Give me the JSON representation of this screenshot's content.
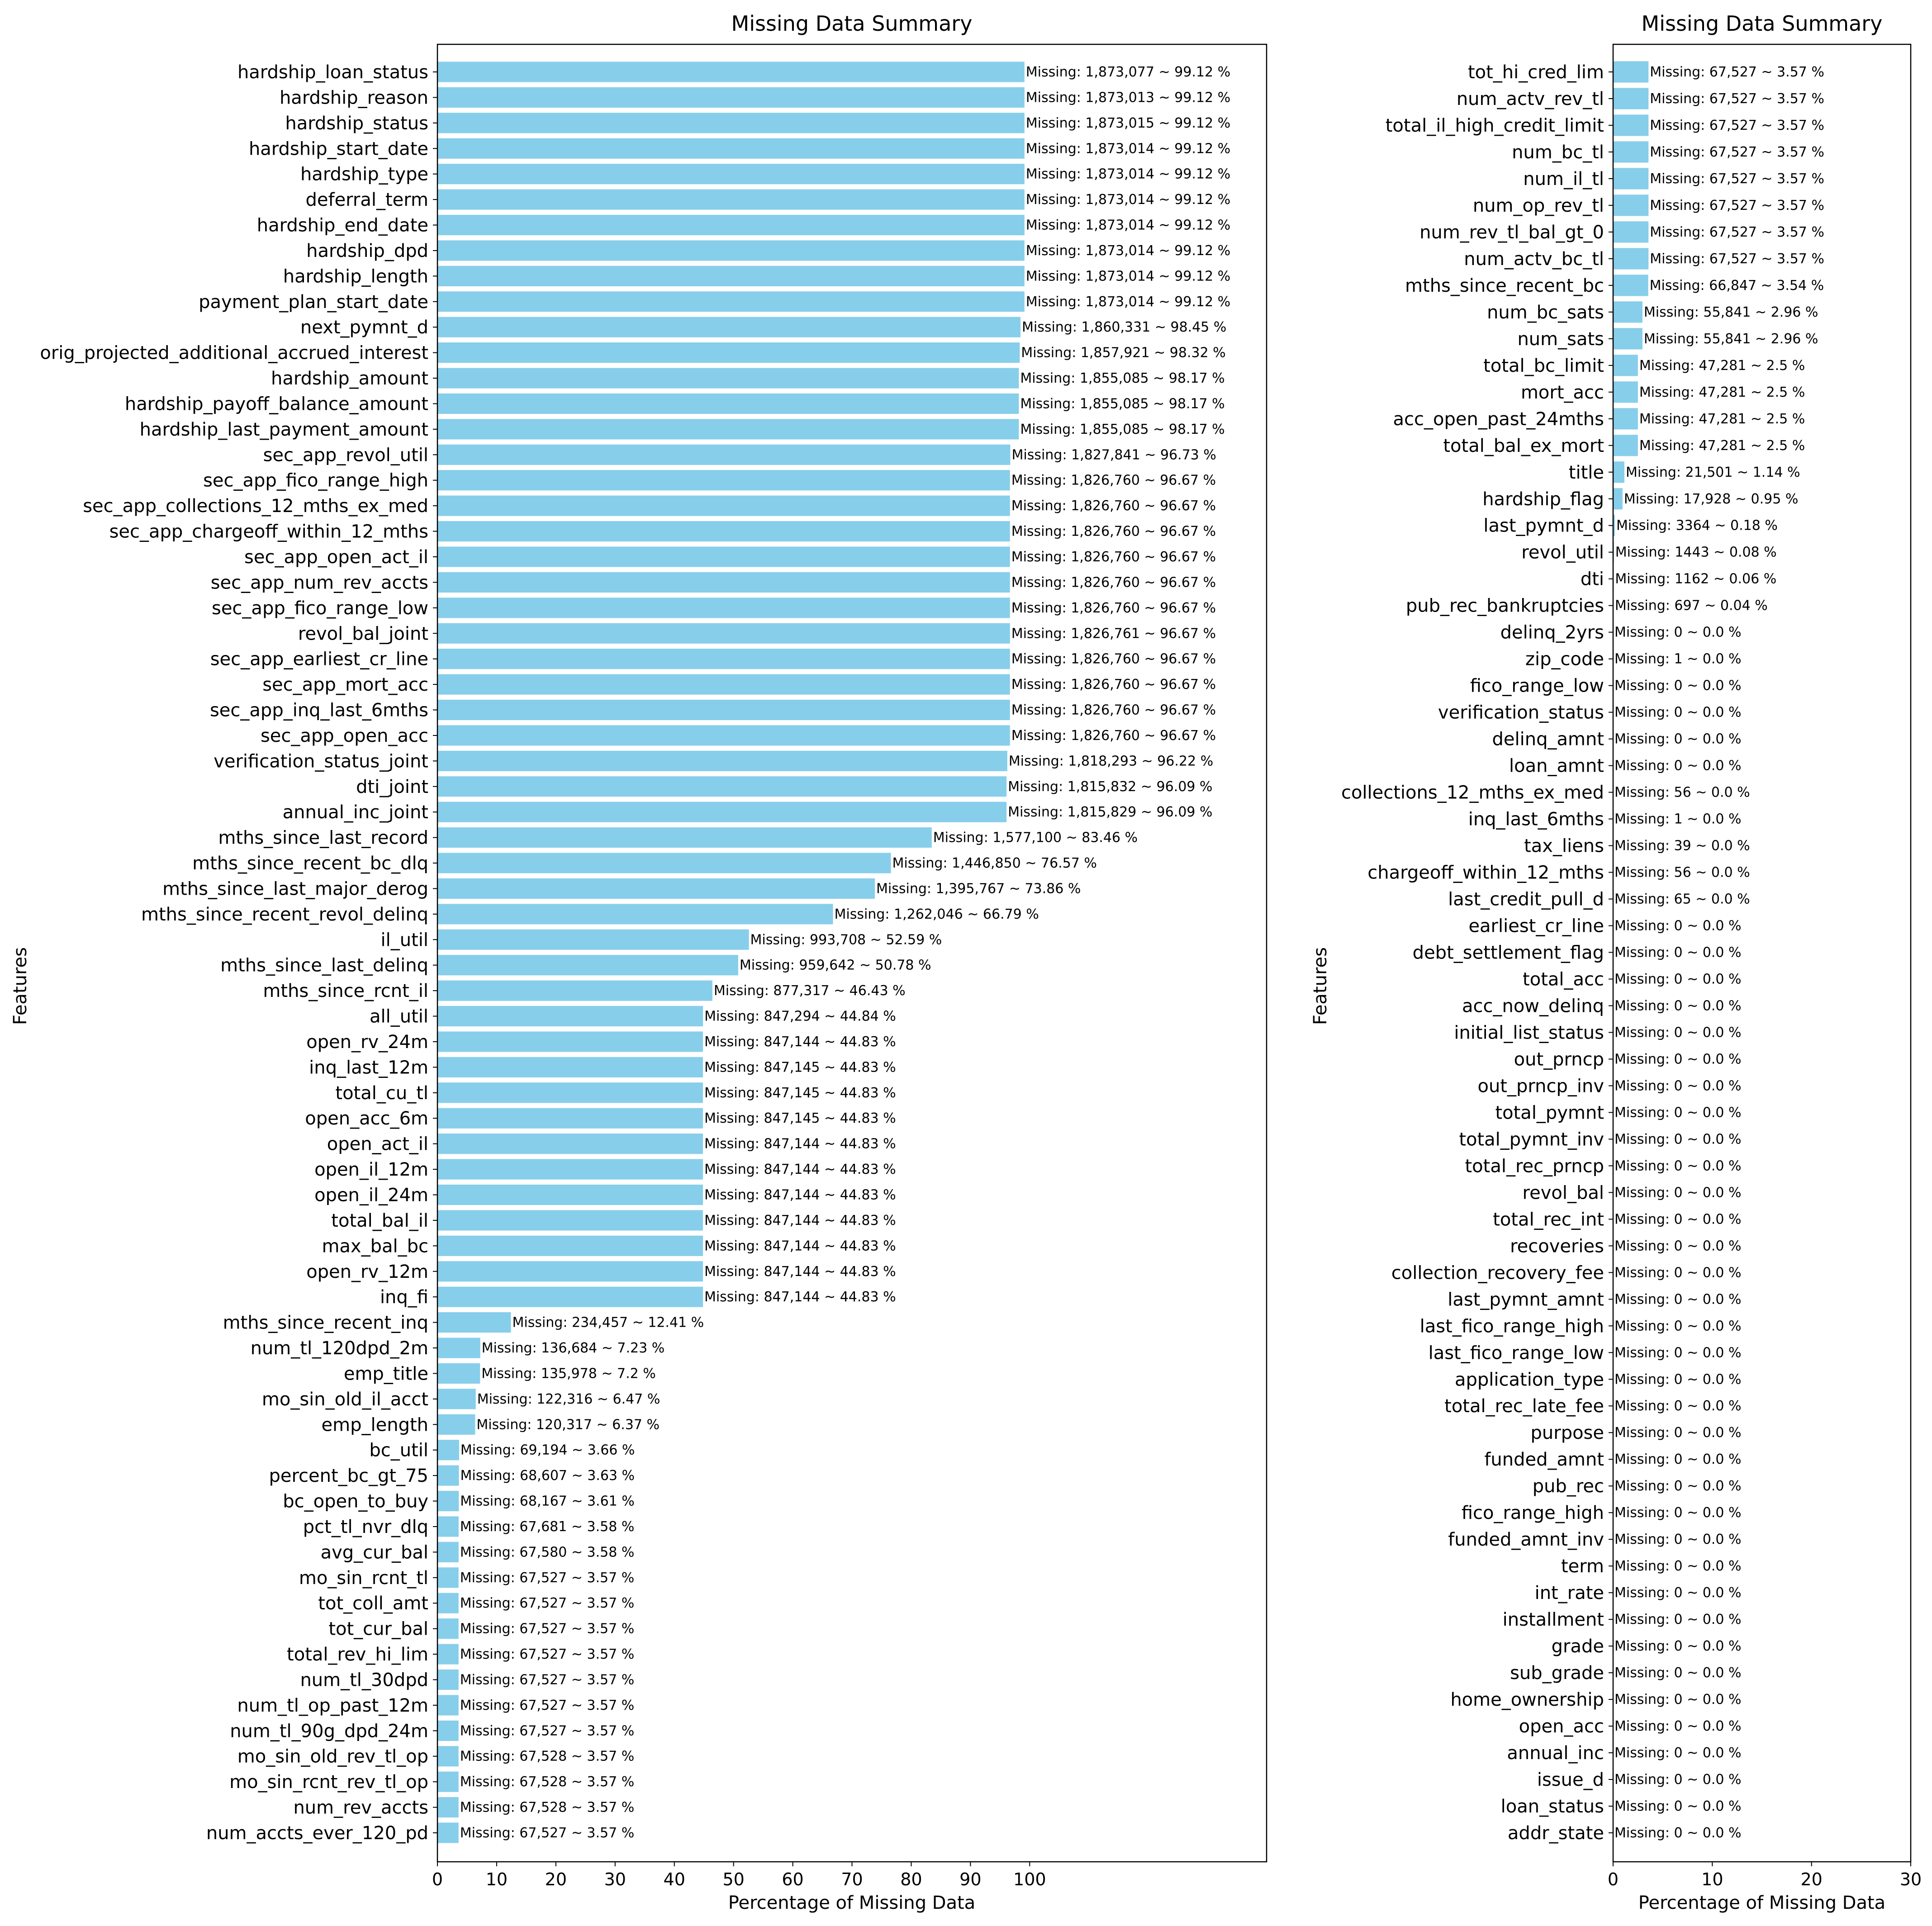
{
  "chart_data": [
    {
      "type": "bar",
      "orientation": "horizontal",
      "title": "Missing Data Summary",
      "xlabel": "Percentage of Missing Data",
      "ylabel": "Features",
      "xlim": [
        0,
        140
      ],
      "xticks": [
        0,
        10,
        20,
        30,
        40,
        50,
        60,
        70,
        80,
        90,
        100
      ],
      "bar_color": "#87ceeb",
      "grid": false,
      "categories": [
        "hardship_loan_status",
        "hardship_reason",
        "hardship_status",
        "hardship_start_date",
        "hardship_type",
        "deferral_term",
        "hardship_end_date",
        "hardship_dpd",
        "hardship_length",
        "payment_plan_start_date",
        "next_pymnt_d",
        "orig_projected_additional_accrued_interest",
        "hardship_amount",
        "hardship_payoff_balance_amount",
        "hardship_last_payment_amount",
        "sec_app_revol_util",
        "sec_app_fico_range_high",
        "sec_app_collections_12_mths_ex_med",
        "sec_app_chargeoff_within_12_mths",
        "sec_app_open_act_il",
        "sec_app_num_rev_accts",
        "sec_app_fico_range_low",
        "revol_bal_joint",
        "sec_app_earliest_cr_line",
        "sec_app_mort_acc",
        "sec_app_inq_last_6mths",
        "sec_app_open_acc",
        "verification_status_joint",
        "dti_joint",
        "annual_inc_joint",
        "mths_since_last_record",
        "mths_since_recent_bc_dlq",
        "mths_since_last_major_derog",
        "mths_since_recent_revol_delinq",
        "il_util",
        "mths_since_last_delinq",
        "mths_since_rcnt_il",
        "all_util",
        "open_rv_24m",
        "inq_last_12m",
        "total_cu_tl",
        "open_acc_6m",
        "open_act_il",
        "open_il_12m",
        "open_il_24m",
        "total_bal_il",
        "max_bal_bc",
        "open_rv_12m",
        "inq_fi",
        "mths_since_recent_inq",
        "num_tl_120dpd_2m",
        "emp_title",
        "mo_sin_old_il_acct",
        "emp_length",
        "bc_util",
        "percent_bc_gt_75",
        "bc_open_to_buy",
        "pct_tl_nvr_dlq",
        "avg_cur_bal",
        "mo_sin_rcnt_tl",
        "tot_coll_amt",
        "tot_cur_bal",
        "total_rev_hi_lim",
        "num_tl_30dpd",
        "num_tl_op_past_12m",
        "num_tl_90g_dpd_24m",
        "mo_sin_old_rev_tl_op",
        "mo_sin_rcnt_rev_tl_op",
        "num_rev_accts",
        "num_accts_ever_120_pd"
      ],
      "values": [
        99.12,
        99.12,
        99.12,
        99.12,
        99.12,
        99.12,
        99.12,
        99.12,
        99.12,
        99.12,
        98.45,
        98.32,
        98.17,
        98.17,
        98.17,
        96.73,
        96.67,
        96.67,
        96.67,
        96.67,
        96.67,
        96.67,
        96.67,
        96.67,
        96.67,
        96.67,
        96.67,
        96.22,
        96.09,
        96.09,
        83.46,
        76.57,
        73.86,
        66.79,
        52.59,
        50.78,
        46.43,
        44.84,
        44.83,
        44.83,
        44.83,
        44.83,
        44.83,
        44.83,
        44.83,
        44.83,
        44.83,
        44.83,
        44.83,
        12.41,
        7.23,
        7.2,
        6.47,
        6.37,
        3.66,
        3.63,
        3.61,
        3.58,
        3.58,
        3.57,
        3.57,
        3.57,
        3.57,
        3.57,
        3.57,
        3.57,
        3.57,
        3.57,
        3.57,
        3.57
      ],
      "data_labels": [
        "Missing: 1,873,077 ~ 99.12 %",
        "Missing: 1,873,013 ~ 99.12 %",
        "Missing: 1,873,015 ~ 99.12 %",
        "Missing: 1,873,014 ~ 99.12 %",
        "Missing: 1,873,014 ~ 99.12 %",
        "Missing: 1,873,014 ~ 99.12 %",
        "Missing: 1,873,014 ~ 99.12 %",
        "Missing: 1,873,014 ~ 99.12 %",
        "Missing: 1,873,014 ~ 99.12 %",
        "Missing: 1,873,014 ~ 99.12 %",
        "Missing: 1,860,331 ~ 98.45 %",
        "Missing: 1,857,921 ~ 98.32 %",
        "Missing: 1,855,085 ~ 98.17 %",
        "Missing: 1,855,085 ~ 98.17 %",
        "Missing: 1,855,085 ~ 98.17 %",
        "Missing: 1,827,841 ~ 96.73 %",
        "Missing: 1,826,760 ~ 96.67 %",
        "Missing: 1,826,760 ~ 96.67 %",
        "Missing: 1,826,760 ~ 96.67 %",
        "Missing: 1,826,760 ~ 96.67 %",
        "Missing: 1,826,760 ~ 96.67 %",
        "Missing: 1,826,760 ~ 96.67 %",
        "Missing: 1,826,761 ~ 96.67 %",
        "Missing: 1,826,760 ~ 96.67 %",
        "Missing: 1,826,760 ~ 96.67 %",
        "Missing: 1,826,760 ~ 96.67 %",
        "Missing: 1,826,760 ~ 96.67 %",
        "Missing: 1,818,293 ~ 96.22 %",
        "Missing: 1,815,832 ~ 96.09 %",
        "Missing: 1,815,829 ~ 96.09 %",
        "Missing: 1,577,100 ~ 83.46 %",
        "Missing: 1,446,850 ~ 76.57 %",
        "Missing: 1,395,767 ~ 73.86 %",
        "Missing: 1,262,046 ~ 66.79 %",
        "Missing: 993,708 ~ 52.59 %",
        "Missing: 959,642 ~ 50.78 %",
        "Missing: 877,317 ~ 46.43 %",
        "Missing: 847,294 ~ 44.84 %",
        "Missing: 847,144 ~ 44.83 %",
        "Missing: 847,145 ~ 44.83 %",
        "Missing: 847,145 ~ 44.83 %",
        "Missing: 847,145 ~ 44.83 %",
        "Missing: 847,144 ~ 44.83 %",
        "Missing: 847,144 ~ 44.83 %",
        "Missing: 847,144 ~ 44.83 %",
        "Missing: 847,144 ~ 44.83 %",
        "Missing: 847,144 ~ 44.83 %",
        "Missing: 847,144 ~ 44.83 %",
        "Missing: 847,144 ~ 44.83 %",
        "Missing: 234,457 ~ 12.41 %",
        "Missing: 136,684 ~ 7.23 %",
        "Missing: 135,978 ~ 7.2 %",
        "Missing: 122,316 ~ 6.47 %",
        "Missing: 120,317 ~ 6.37 %",
        "Missing: 69,194 ~ 3.66 %",
        "Missing: 68,607 ~ 3.63 %",
        "Missing: 68,167 ~ 3.61 %",
        "Missing: 67,681 ~ 3.58 %",
        "Missing: 67,580 ~ 3.58 %",
        "Missing: 67,527 ~ 3.57 %",
        "Missing: 67,527 ~ 3.57 %",
        "Missing: 67,527 ~ 3.57 %",
        "Missing: 67,527 ~ 3.57 %",
        "Missing: 67,527 ~ 3.57 %",
        "Missing: 67,527 ~ 3.57 %",
        "Missing: 67,527 ~ 3.57 %",
        "Missing: 67,528 ~ 3.57 %",
        "Missing: 67,528 ~ 3.57 %",
        "Missing: 67,528 ~ 3.57 %",
        "Missing: 67,527 ~ 3.57 %"
      ]
    },
    {
      "type": "bar",
      "orientation": "horizontal",
      "title": "Missing Data Summary",
      "xlabel": "Percentage of Missing Data",
      "ylabel": "Features",
      "xlim": [
        0,
        30
      ],
      "xticks": [
        0,
        10,
        20,
        30
      ],
      "bar_color": "#87ceeb",
      "grid": false,
      "categories": [
        "tot_hi_cred_lim",
        "num_actv_rev_tl",
        "total_il_high_credit_limit",
        "num_bc_tl",
        "num_il_tl",
        "num_op_rev_tl",
        "num_rev_tl_bal_gt_0",
        "num_actv_bc_tl",
        "mths_since_recent_bc",
        "num_bc_sats",
        "num_sats",
        "total_bc_limit",
        "mort_acc",
        "acc_open_past_24mths",
        "total_bal_ex_mort",
        "title",
        "hardship_flag",
        "last_pymnt_d",
        "revol_util",
        "dti",
        "pub_rec_bankruptcies",
        "delinq_2yrs",
        "zip_code",
        "fico_range_low",
        "verification_status",
        "delinq_amnt",
        "loan_amnt",
        "collections_12_mths_ex_med",
        "inq_last_6mths",
        "tax_liens",
        "chargeoff_within_12_mths",
        "last_credit_pull_d",
        "earliest_cr_line",
        "debt_settlement_flag",
        "total_acc",
        "acc_now_delinq",
        "initial_list_status",
        "out_prncp",
        "out_prncp_inv",
        "total_pymnt",
        "total_pymnt_inv",
        "total_rec_prncp",
        "revol_bal",
        "total_rec_int",
        "recoveries",
        "collection_recovery_fee",
        "last_pymnt_amnt",
        "last_fico_range_high",
        "last_fico_range_low",
        "application_type",
        "total_rec_late_fee",
        "purpose",
        "funded_amnt",
        "pub_rec",
        "fico_range_high",
        "funded_amnt_inv",
        "term",
        "int_rate",
        "installment",
        "grade",
        "sub_grade",
        "home_ownership",
        "open_acc",
        "annual_inc",
        "issue_d",
        "loan_status",
        "addr_state"
      ],
      "values": [
        3.57,
        3.57,
        3.57,
        3.57,
        3.57,
        3.57,
        3.57,
        3.57,
        3.54,
        2.96,
        2.96,
        2.5,
        2.5,
        2.5,
        2.5,
        1.14,
        0.95,
        0.18,
        0.08,
        0.06,
        0.04,
        0,
        0,
        0,
        0,
        0,
        0,
        0,
        0,
        0,
        0,
        0,
        0,
        0,
        0,
        0,
        0,
        0,
        0,
        0,
        0,
        0,
        0,
        0,
        0,
        0,
        0,
        0,
        0,
        0,
        0,
        0,
        0,
        0,
        0,
        0,
        0,
        0,
        0,
        0,
        0,
        0,
        0,
        0,
        0,
        0,
        0
      ],
      "data_labels": [
        "Missing: 67,527 ~ 3.57 %",
        "Missing: 67,527 ~ 3.57 %",
        "Missing: 67,527 ~ 3.57 %",
        "Missing: 67,527 ~ 3.57 %",
        "Missing: 67,527 ~ 3.57 %",
        "Missing: 67,527 ~ 3.57 %",
        "Missing: 67,527 ~ 3.57 %",
        "Missing: 67,527 ~ 3.57 %",
        "Missing: 66,847 ~ 3.54 %",
        "Missing: 55,841 ~ 2.96 %",
        "Missing: 55,841 ~ 2.96 %",
        "Missing: 47,281 ~ 2.5 %",
        "Missing: 47,281 ~ 2.5 %",
        "Missing: 47,281 ~ 2.5 %",
        "Missing: 47,281 ~ 2.5 %",
        "Missing: 21,501 ~ 1.14 %",
        "Missing: 17,928 ~ 0.95 %",
        "Missing: 3364 ~ 0.18 %",
        "Missing: 1443 ~ 0.08 %",
        "Missing: 1162 ~ 0.06 %",
        "Missing: 697 ~ 0.04 %",
        "Missing: 0 ~ 0.0 %",
        "Missing: 1 ~ 0.0 %",
        "Missing: 0 ~ 0.0 %",
        "Missing: 0 ~ 0.0 %",
        "Missing: 0 ~ 0.0 %",
        "Missing: 0 ~ 0.0 %",
        "Missing: 56 ~ 0.0 %",
        "Missing: 1 ~ 0.0 %",
        "Missing: 39 ~ 0.0 %",
        "Missing: 56 ~ 0.0 %",
        "Missing: 65 ~ 0.0 %",
        "Missing: 0 ~ 0.0 %",
        "Missing: 0 ~ 0.0 %",
        "Missing: 0 ~ 0.0 %",
        "Missing: 0 ~ 0.0 %",
        "Missing: 0 ~ 0.0 %",
        "Missing: 0 ~ 0.0 %",
        "Missing: 0 ~ 0.0 %",
        "Missing: 0 ~ 0.0 %",
        "Missing: 0 ~ 0.0 %",
        "Missing: 0 ~ 0.0 %",
        "Missing: 0 ~ 0.0 %",
        "Missing: 0 ~ 0.0 %",
        "Missing: 0 ~ 0.0 %",
        "Missing: 0 ~ 0.0 %",
        "Missing: 0 ~ 0.0 %",
        "Missing: 0 ~ 0.0 %",
        "Missing: 0 ~ 0.0 %",
        "Missing: 0 ~ 0.0 %",
        "Missing: 0 ~ 0.0 %",
        "Missing: 0 ~ 0.0 %",
        "Missing: 0 ~ 0.0 %",
        "Missing: 0 ~ 0.0 %",
        "Missing: 0 ~ 0.0 %",
        "Missing: 0 ~ 0.0 %",
        "Missing: 0 ~ 0.0 %",
        "Missing: 0 ~ 0.0 %",
        "Missing: 0 ~ 0.0 %",
        "Missing: 0 ~ 0.0 %",
        "Missing: 0 ~ 0.0 %",
        "Missing: 0 ~ 0.0 %",
        "Missing: 0 ~ 0.0 %",
        "Missing: 0 ~ 0.0 %",
        "Missing: 0 ~ 0.0 %",
        "Missing: 0 ~ 0.0 %",
        "Missing: 0 ~ 0.0 %"
      ]
    }
  ]
}
